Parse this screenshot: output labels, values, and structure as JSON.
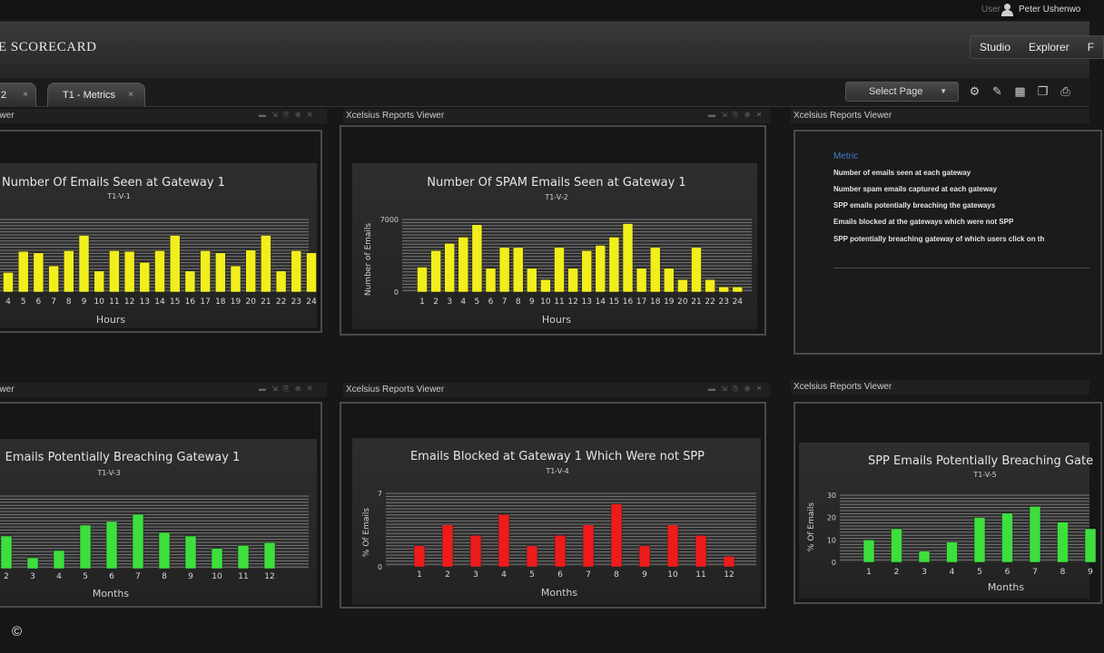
{
  "topbar": {
    "user_label": "User",
    "user_icon": "user-icon",
    "user_name": "Peter Ushenwo"
  },
  "header": {
    "app_title": "E SCORECARD",
    "nav": [
      {
        "label": "Studio"
      },
      {
        "label": "Explorer"
      },
      {
        "label": "F"
      }
    ]
  },
  "tabs": [
    {
      "label": "2",
      "close": "×"
    },
    {
      "label": "T1 - Metrics",
      "close": "×"
    }
  ],
  "toolbar": {
    "page_select": "Select Page",
    "chevron_icon": "chevron-down-icon",
    "icons": [
      "gear-icon",
      "edit-page-icon",
      "grid-icon",
      "copy-page-icon",
      "print-icon"
    ]
  },
  "panels": [
    {
      "header": "ewer"
    },
    {
      "header": "Xcelsius Reports Viewer"
    },
    {
      "header": "Xcelsius Reports Viewer"
    },
    {
      "header": "ewer"
    },
    {
      "header": "Xcelsius Reports Viewer"
    },
    {
      "header": "Xcelsius Reports Viewer"
    }
  ],
  "metric_list": {
    "title": "Metric",
    "items": [
      "Number of emails seen at each gateway",
      "Number spam emails captured at each gateway",
      "SPP emails potentially breaching the gateways",
      "Emails blocked at the gateways which were not SPP",
      "SPP potentially breaching gateway of which users click on th"
    ]
  },
  "colors": {
    "yellow_bar": "#f2ee1c",
    "red_bar": "#ee1b1b",
    "green_bar": "#3ddf3d",
    "link": "#3d7cc9"
  },
  "copyright": "©",
  "chart_data": [
    {
      "type": "bar",
      "title": "Number Of Emails Seen at Gateway 1",
      "subtitle": "T1-V-1",
      "xlabel": "Hours",
      "ylabel": "",
      "categories": [
        "4",
        "5",
        "6",
        "7",
        "8",
        "9",
        "10",
        "11",
        "12",
        "13",
        "14",
        "15",
        "16",
        "17",
        "18",
        "19",
        "20",
        "21",
        "22",
        "23",
        "24"
      ],
      "values": [
        2700,
        5600,
        5400,
        3600,
        5700,
        7800,
        2900,
        5700,
        5600,
        4100,
        5700,
        7800,
        2900,
        5700,
        5400,
        3600,
        5800,
        7800,
        2900,
        5700,
        5400
      ],
      "ylim": [
        0,
        10000
      ],
      "color": "#f2ee1c"
    },
    {
      "type": "bar",
      "title": "Number Of SPAM Emails Seen at Gateway 1",
      "subtitle": "T1-V-2",
      "xlabel": "Hours",
      "ylabel": "Number of Emails",
      "yticks": [
        "0",
        "7000"
      ],
      "categories": [
        "1",
        "2",
        "3",
        "4",
        "5",
        "6",
        "7",
        "8",
        "9",
        "10",
        "11",
        "12",
        "13",
        "14",
        "15",
        "16",
        "17",
        "18",
        "19",
        "20",
        "21",
        "22",
        "23",
        "24"
      ],
      "values": [
        2400,
        4000,
        4700,
        5300,
        6500,
        2300,
        4300,
        4300,
        2300,
        1200,
        4300,
        2300,
        4000,
        4500,
        5300,
        6600,
        2300,
        4300,
        2300,
        1200,
        4300,
        1200,
        500,
        500
      ],
      "ylim": [
        0,
        7000
      ],
      "color": "#f2ee1c"
    },
    {
      "type": "bar",
      "title": "Emails Potentially Breaching Gateway 1",
      "subtitle": "T1-V-3",
      "xlabel": "Months",
      "ylabel": "",
      "categories": [
        "2",
        "3",
        "4",
        "5",
        "6",
        "7",
        "8",
        "9",
        "10",
        "11",
        "12"
      ],
      "values": [
        4.5,
        1.5,
        2.5,
        6,
        6.5,
        7.5,
        5,
        4.5,
        2.8,
        3.2,
        3.6
      ],
      "ylim": [
        0,
        10
      ],
      "color": "#3ddf3d"
    },
    {
      "type": "bar",
      "title": "Emails Blocked at Gateway 1 Which Were not SPP",
      "subtitle": "T1-V-4",
      "xlabel": "Months",
      "ylabel": "% Of Emails",
      "yticks": [
        "0",
        "7"
      ],
      "categories": [
        "1",
        "2",
        "3",
        "4",
        "5",
        "6",
        "7",
        "8",
        "9",
        "10",
        "11",
        "12"
      ],
      "values": [
        2,
        4,
        3,
        5,
        2,
        3,
        4,
        6,
        2,
        4,
        3,
        1
      ],
      "ylim": [
        0,
        7
      ],
      "color": "#ee1b1b"
    },
    {
      "type": "bar",
      "title": "SPP Emails Potentially Breaching Gate",
      "subtitle": "T1-V-5",
      "xlabel": "Months",
      "ylabel": "% Of Emails",
      "yticks": [
        "0",
        "10",
        "20",
        "30"
      ],
      "categories": [
        "1",
        "2",
        "3",
        "4",
        "5",
        "6",
        "7",
        "8",
        "9"
      ],
      "values": [
        10,
        15,
        5,
        9,
        20,
        22,
        25,
        18,
        15
      ],
      "ylim": [
        0,
        30
      ],
      "color": "#3ddf3d"
    }
  ]
}
